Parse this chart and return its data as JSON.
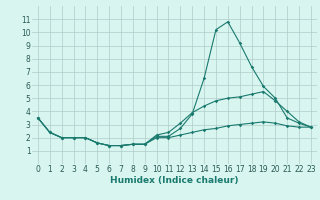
{
  "xlabel": "Humidex (Indice chaleur)",
  "x": [
    0,
    1,
    2,
    3,
    4,
    5,
    6,
    7,
    8,
    9,
    10,
    11,
    12,
    13,
    14,
    15,
    16,
    17,
    18,
    19,
    20,
    21,
    22,
    23
  ],
  "line1": [
    3.5,
    2.4,
    2.0,
    2.0,
    2.0,
    1.6,
    1.4,
    1.4,
    1.5,
    1.5,
    2.1,
    2.1,
    2.7,
    3.8,
    6.5,
    10.2,
    10.8,
    9.2,
    7.4,
    5.9,
    5.0,
    3.5,
    3.1,
    2.8
  ],
  "line2": [
    3.5,
    2.4,
    2.0,
    2.0,
    2.0,
    1.6,
    1.4,
    1.4,
    1.5,
    1.5,
    2.2,
    2.4,
    3.1,
    3.9,
    4.4,
    4.8,
    5.0,
    5.1,
    5.3,
    5.5,
    4.8,
    4.0,
    3.2,
    2.8
  ],
  "line3": [
    3.5,
    2.4,
    2.0,
    2.0,
    2.0,
    1.6,
    1.4,
    1.4,
    1.5,
    1.5,
    2.0,
    2.0,
    2.2,
    2.4,
    2.6,
    2.7,
    2.9,
    3.0,
    3.1,
    3.2,
    3.1,
    2.9,
    2.8,
    2.8
  ],
  "line_color": "#1a7a6e",
  "bg_color": "#d8f5f0",
  "grid_color": "#b0ccc8",
  "ylim": [
    0,
    12
  ],
  "xlim": [
    -0.5,
    23.5
  ],
  "yticks": [
    1,
    2,
    3,
    4,
    5,
    6,
    7,
    8,
    9,
    10,
    11
  ],
  "xticks": [
    0,
    1,
    2,
    3,
    4,
    5,
    6,
    7,
    8,
    9,
    10,
    11,
    12,
    13,
    14,
    15,
    16,
    17,
    18,
    19,
    20,
    21,
    22,
    23
  ],
  "tick_fontsize": 5.5,
  "label_fontsize": 6.5
}
